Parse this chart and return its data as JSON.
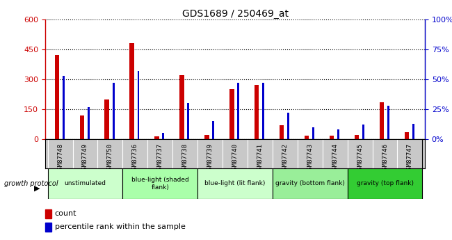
{
  "title": "GDS1689 / 250469_at",
  "samples": [
    "GSM87748",
    "GSM87749",
    "GSM87750",
    "GSM87736",
    "GSM87737",
    "GSM87738",
    "GSM87739",
    "GSM87740",
    "GSM87741",
    "GSM87742",
    "GSM87743",
    "GSM87744",
    "GSM87745",
    "GSM87746",
    "GSM87747"
  ],
  "counts": [
    420,
    120,
    200,
    480,
    15,
    320,
    20,
    250,
    270,
    70,
    18,
    18,
    22,
    185,
    35
  ],
  "percentiles": [
    53,
    27,
    47,
    57,
    5,
    30,
    15,
    47,
    47,
    22,
    10,
    8,
    12,
    28,
    13
  ],
  "red_color": "#cc0000",
  "blue_color": "#0000cc",
  "ylim_left": [
    0,
    600
  ],
  "ylim_right": [
    0,
    100
  ],
  "yticks_left": [
    0,
    150,
    300,
    450,
    600
  ],
  "yticks_right": [
    0,
    25,
    50,
    75,
    100
  ],
  "ytick_labels_left": [
    "0",
    "150",
    "300",
    "450",
    "600"
  ],
  "ytick_labels_right": [
    "0%",
    "25%",
    "50%",
    "75%",
    "100%"
  ],
  "groups": [
    {
      "label": "unstimulated",
      "start": 0,
      "end": 3,
      "color": "#ccffcc"
    },
    {
      "label": "blue-light (shaded\nflank)",
      "start": 3,
      "end": 6,
      "color": "#aaffaa"
    },
    {
      "label": "blue-light (lit flank)",
      "start": 6,
      "end": 9,
      "color": "#ccffcc"
    },
    {
      "label": "gravity (bottom flank)",
      "start": 9,
      "end": 12,
      "color": "#99ee99"
    },
    {
      "label": "gravity (top flank)",
      "start": 12,
      "end": 15,
      "color": "#33cc33"
    }
  ],
  "growth_protocol_label": "growth protocol",
  "legend_count": "count",
  "legend_percentile": "percentile rank within the sample",
  "red_bar_width": 0.18,
  "blue_bar_width": 0.08,
  "xtick_bg": "#c8c8c8",
  "bg_plot": "#ffffff"
}
